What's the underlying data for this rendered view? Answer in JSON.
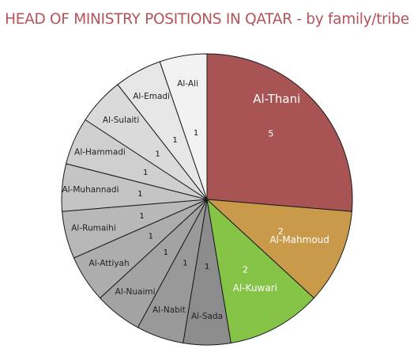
{
  "chart_data": {
    "type": "pie",
    "title": "HEAD OF MINISTRY POSITIONS IN QATAR - by family/tribe",
    "categories": [
      "Al-Thani",
      "Al-Mahmoud",
      "Al-Kuwari",
      "Al-Sada",
      "Al-Nabit",
      "Al-Nuaimi",
      "Al-Attiyah",
      "Al-Rumaihi",
      "Al-Muhannadi",
      "Al-Hammadi",
      "Al-Sulaiti",
      "Al-Emadi",
      "Al-Ali"
    ],
    "values": [
      5,
      2,
      2,
      1,
      1,
      1,
      1,
      1,
      1,
      1,
      1,
      1,
      1
    ],
    "value_labels": [
      "5",
      "2",
      "2",
      "1",
      "1",
      "1",
      "1",
      "1",
      "1",
      "1",
      "1",
      "1",
      "1"
    ],
    "colors": [
      "#a85454",
      "#c99a4a",
      "#85c447",
      "#8c8c8c",
      "#999999",
      "#a3a3a3",
      "#adadad",
      "#b8b8b8",
      "#c4c4c4",
      "#cfcfcf",
      "#dadada",
      "#e6e6e6",
      "#f2f2f2"
    ],
    "start": "12 o'clock",
    "direction": "clockwise"
  }
}
